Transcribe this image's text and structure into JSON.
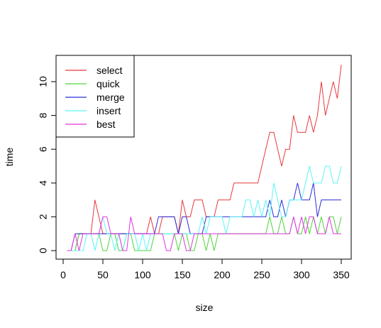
{
  "chart_data": {
    "type": "line",
    "title": "",
    "xlabel": "size",
    "ylabel": "time",
    "xlim": [
      0,
      360
    ],
    "ylim": [
      0,
      11.5
    ],
    "xticks": [
      0,
      50,
      100,
      150,
      200,
      250,
      300,
      350
    ],
    "yticks": [
      0,
      2,
      4,
      6,
      8,
      10
    ],
    "grid": false,
    "legend": "top-left",
    "series": [
      {
        "name": "select",
        "color": "#e8383d",
        "x": [
          5,
          10,
          15,
          20,
          25,
          30,
          35,
          40,
          45,
          50,
          55,
          60,
          65,
          70,
          75,
          80,
          85,
          90,
          95,
          100,
          105,
          110,
          115,
          120,
          125,
          130,
          135,
          140,
          145,
          150,
          155,
          160,
          165,
          170,
          175,
          180,
          185,
          190,
          195,
          200,
          205,
          210,
          215,
          220,
          225,
          230,
          235,
          240,
          245,
          250,
          255,
          260,
          265,
          270,
          275,
          280,
          285,
          290,
          295,
          300,
          305,
          310,
          315,
          320,
          325,
          330,
          335,
          340,
          345,
          350
        ],
        "y": [
          0,
          0,
          0,
          1,
          1,
          1,
          1,
          3,
          2,
          1,
          1,
          1,
          1,
          1,
          1,
          1,
          1,
          1,
          1,
          1,
          1,
          2,
          1,
          1,
          2,
          2,
          2,
          2,
          1,
          3,
          2,
          2,
          3,
          3,
          3,
          2,
          2,
          2,
          3,
          3,
          3,
          3,
          4,
          4,
          4,
          4,
          4,
          4,
          4,
          5,
          6,
          7,
          7,
          6,
          5,
          6,
          6,
          8,
          7,
          7,
          7,
          8,
          7,
          8,
          10,
          8,
          9,
          10,
          9,
          11
        ]
      },
      {
        "name": "quick",
        "color": "#4dd338",
        "x": [
          5,
          10,
          15,
          20,
          25,
          30,
          35,
          40,
          45,
          50,
          55,
          60,
          65,
          70,
          75,
          80,
          85,
          90,
          95,
          100,
          105,
          110,
          115,
          120,
          125,
          130,
          135,
          140,
          145,
          150,
          155,
          160,
          165,
          170,
          175,
          180,
          185,
          190,
          195,
          200,
          205,
          210,
          215,
          220,
          225,
          230,
          235,
          240,
          245,
          250,
          255,
          260,
          265,
          270,
          275,
          280,
          285,
          290,
          295,
          300,
          305,
          310,
          315,
          320,
          325,
          330,
          335,
          340,
          345,
          350
        ],
        "y": [
          0,
          0,
          0,
          1,
          1,
          1,
          1,
          1,
          1,
          0,
          0,
          1,
          1,
          0,
          0,
          1,
          1,
          0,
          0,
          0,
          0,
          0,
          1,
          1,
          1,
          1,
          1,
          1,
          0,
          1,
          1,
          0,
          0,
          1,
          1,
          0,
          1,
          0,
          1,
          1,
          1,
          1,
          1,
          1,
          1,
          1,
          1,
          1,
          1,
          1,
          1,
          2,
          1,
          1,
          2,
          1,
          1,
          2,
          1,
          1,
          2,
          1,
          2,
          1,
          2,
          1,
          2,
          2,
          1,
          2
        ]
      },
      {
        "name": "merge",
        "color": "#2b2bd6",
        "x": [
          5,
          10,
          15,
          20,
          25,
          30,
          35,
          40,
          45,
          50,
          55,
          60,
          65,
          70,
          75,
          80,
          85,
          90,
          95,
          100,
          105,
          110,
          115,
          120,
          125,
          130,
          135,
          140,
          145,
          150,
          155,
          160,
          165,
          170,
          175,
          180,
          185,
          190,
          195,
          200,
          205,
          210,
          215,
          220,
          225,
          230,
          235,
          240,
          245,
          250,
          255,
          260,
          265,
          270,
          275,
          280,
          285,
          290,
          295,
          300,
          305,
          310,
          315,
          320,
          325,
          330,
          335,
          340,
          345,
          350
        ],
        "y": [
          0,
          0,
          1,
          1,
          1,
          1,
          1,
          1,
          1,
          1,
          1,
          1,
          1,
          1,
          1,
          1,
          1,
          1,
          1,
          1,
          1,
          1,
          1,
          2,
          2,
          2,
          2,
          2,
          1,
          2,
          2,
          1,
          1,
          1,
          1,
          2,
          2,
          2,
          2,
          2,
          2,
          2,
          2,
          2,
          2,
          2,
          2,
          2,
          2,
          2,
          2,
          3,
          2,
          2,
          3,
          2,
          3,
          3,
          4,
          3,
          3,
          3,
          4,
          2,
          3,
          3,
          3,
          3,
          3,
          3
        ]
      },
      {
        "name": "insert",
        "color": "#5cf5f5",
        "x": [
          5,
          10,
          15,
          20,
          25,
          30,
          35,
          40,
          45,
          50,
          55,
          60,
          65,
          70,
          75,
          80,
          85,
          90,
          95,
          100,
          105,
          110,
          115,
          120,
          125,
          130,
          135,
          140,
          145,
          150,
          155,
          160,
          165,
          170,
          175,
          180,
          185,
          190,
          195,
          200,
          205,
          210,
          215,
          220,
          225,
          230,
          235,
          240,
          245,
          250,
          255,
          260,
          265,
          270,
          275,
          280,
          285,
          290,
          295,
          300,
          305,
          310,
          315,
          320,
          325,
          330,
          335,
          340,
          345,
          350
        ],
        "y": [
          0,
          0,
          0,
          0,
          0,
          1,
          1,
          0,
          1,
          2,
          1,
          1,
          0,
          1,
          0,
          1,
          1,
          1,
          0,
          1,
          0,
          1,
          1,
          1,
          1,
          1,
          1,
          1,
          1,
          1,
          1,
          1,
          1,
          1,
          2,
          1,
          2,
          2,
          2,
          2,
          1,
          2,
          2,
          2,
          2,
          3,
          3,
          2,
          3,
          2,
          3,
          2,
          4,
          3,
          2,
          2,
          3,
          3,
          3,
          3,
          4,
          5,
          4,
          4,
          4,
          5,
          5,
          4,
          4,
          5
        ]
      },
      {
        "name": "best",
        "color": "#e233e2",
        "x": [
          5,
          10,
          15,
          20,
          25,
          30,
          35,
          40,
          45,
          50,
          55,
          60,
          65,
          70,
          75,
          80,
          85,
          90,
          95,
          100,
          105,
          110,
          115,
          120,
          125,
          130,
          135,
          140,
          145,
          150,
          155,
          160,
          165,
          170,
          175,
          180,
          185,
          190,
          195,
          200,
          205,
          210,
          215,
          220,
          225,
          230,
          235,
          240,
          245,
          250,
          255,
          260,
          265,
          270,
          275,
          280,
          285,
          290,
          295,
          300,
          305,
          310,
          315,
          320,
          325,
          330,
          335,
          340,
          345,
          350
        ],
        "y": [
          0,
          0,
          1,
          0,
          1,
          1,
          1,
          1,
          1,
          2,
          2,
          1,
          1,
          1,
          0,
          0,
          2,
          1,
          1,
          1,
          1,
          1,
          1,
          1,
          1,
          0,
          0,
          1,
          1,
          1,
          0,
          0,
          1,
          1,
          1,
          1,
          1,
          1,
          1,
          1,
          1,
          1,
          1,
          1,
          1,
          1,
          1,
          1,
          1,
          1,
          1,
          1,
          1,
          1,
          1,
          1,
          1,
          2,
          1,
          2,
          1,
          2,
          2,
          1,
          1,
          1,
          2,
          1,
          1,
          1
        ]
      }
    ]
  }
}
